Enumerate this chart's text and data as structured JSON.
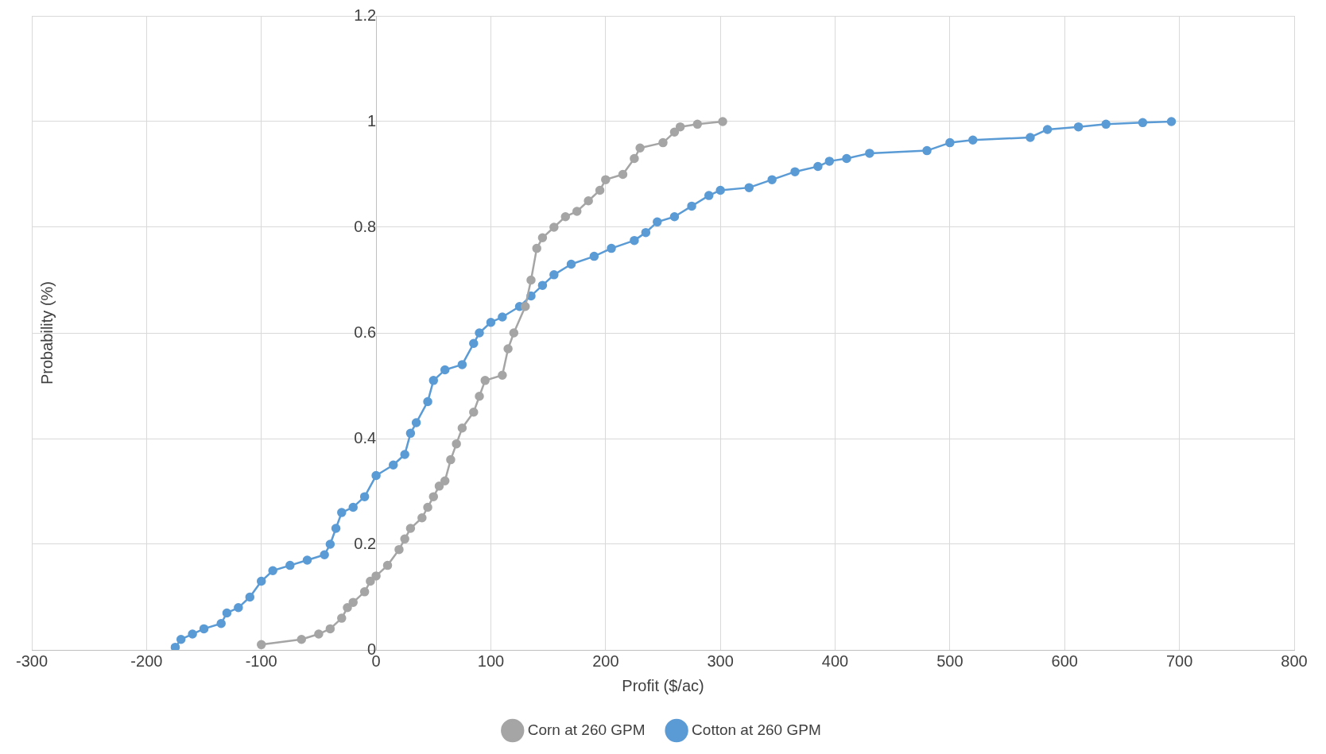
{
  "chart_data": {
    "type": "line",
    "xlabel": "Profit ($/ac)",
    "ylabel": "Probability (%)",
    "xlim": [
      -300,
      800
    ],
    "xticks": [
      -300,
      -200,
      -100,
      0,
      100,
      200,
      300,
      400,
      500,
      600,
      700,
      800
    ],
    "ylim": [
      0,
      1.2
    ],
    "yticks": [
      0,
      0.2,
      0.4,
      0.6,
      0.8,
      1,
      1.2
    ],
    "grid": true,
    "legend": "bottom",
    "marker": "circle",
    "line_style": "solid",
    "series": [
      {
        "name": "Corn at 260 GPM",
        "color": "#a5a5a5",
        "x": [
          -100,
          -65,
          -50,
          -40,
          -30,
          -25,
          -20,
          -10,
          -5,
          0,
          10,
          20,
          25,
          30,
          40,
          45,
          50,
          55,
          60,
          65,
          70,
          75,
          85,
          90,
          95,
          110,
          115,
          120,
          130,
          135,
          140,
          145,
          155,
          165,
          175,
          185,
          195,
          200,
          215,
          225,
          230,
          250,
          260,
          265,
          280,
          302
        ],
        "values": [
          0.01,
          0.02,
          0.03,
          0.04,
          0.06,
          0.08,
          0.09,
          0.11,
          0.13,
          0.14,
          0.16,
          0.19,
          0.21,
          0.23,
          0.25,
          0.27,
          0.29,
          0.31,
          0.32,
          0.36,
          0.39,
          0.42,
          0.45,
          0.48,
          0.51,
          0.52,
          0.57,
          0.6,
          0.65,
          0.7,
          0.76,
          0.78,
          0.8,
          0.82,
          0.83,
          0.85,
          0.87,
          0.89,
          0.9,
          0.93,
          0.95,
          0.96,
          0.98,
          0.99,
          0.995,
          1
        ]
      },
      {
        "name": "Cotton at 260 GPM",
        "color": "#5b9bd5",
        "x": [
          -175,
          -170,
          -160,
          -150,
          -135,
          -130,
          -120,
          -110,
          -100,
          -90,
          -75,
          -60,
          -45,
          -40,
          -35,
          -30,
          -20,
          -10,
          0,
          15,
          25,
          30,
          35,
          45,
          50,
          60,
          75,
          85,
          90,
          100,
          110,
          125,
          135,
          145,
          155,
          170,
          190,
          205,
          225,
          235,
          245,
          260,
          275,
          290,
          300,
          325,
          345,
          365,
          385,
          395,
          410,
          430,
          480,
          500,
          520,
          570,
          585,
          612,
          636,
          668,
          693
        ],
        "values": [
          0.005,
          0.02,
          0.03,
          0.04,
          0.05,
          0.07,
          0.08,
          0.1,
          0.13,
          0.15,
          0.16,
          0.17,
          0.18,
          0.2,
          0.23,
          0.26,
          0.27,
          0.29,
          0.33,
          0.35,
          0.37,
          0.41,
          0.43,
          0.47,
          0.51,
          0.53,
          0.54,
          0.58,
          0.6,
          0.62,
          0.63,
          0.65,
          0.67,
          0.69,
          0.71,
          0.73,
          0.745,
          0.76,
          0.775,
          0.79,
          0.81,
          0.82,
          0.84,
          0.86,
          0.87,
          0.875,
          0.89,
          0.905,
          0.915,
          0.925,
          0.93,
          0.94,
          0.945,
          0.96,
          0.965,
          0.97,
          0.985,
          0.99,
          0.995,
          0.998,
          1
        ]
      }
    ]
  }
}
